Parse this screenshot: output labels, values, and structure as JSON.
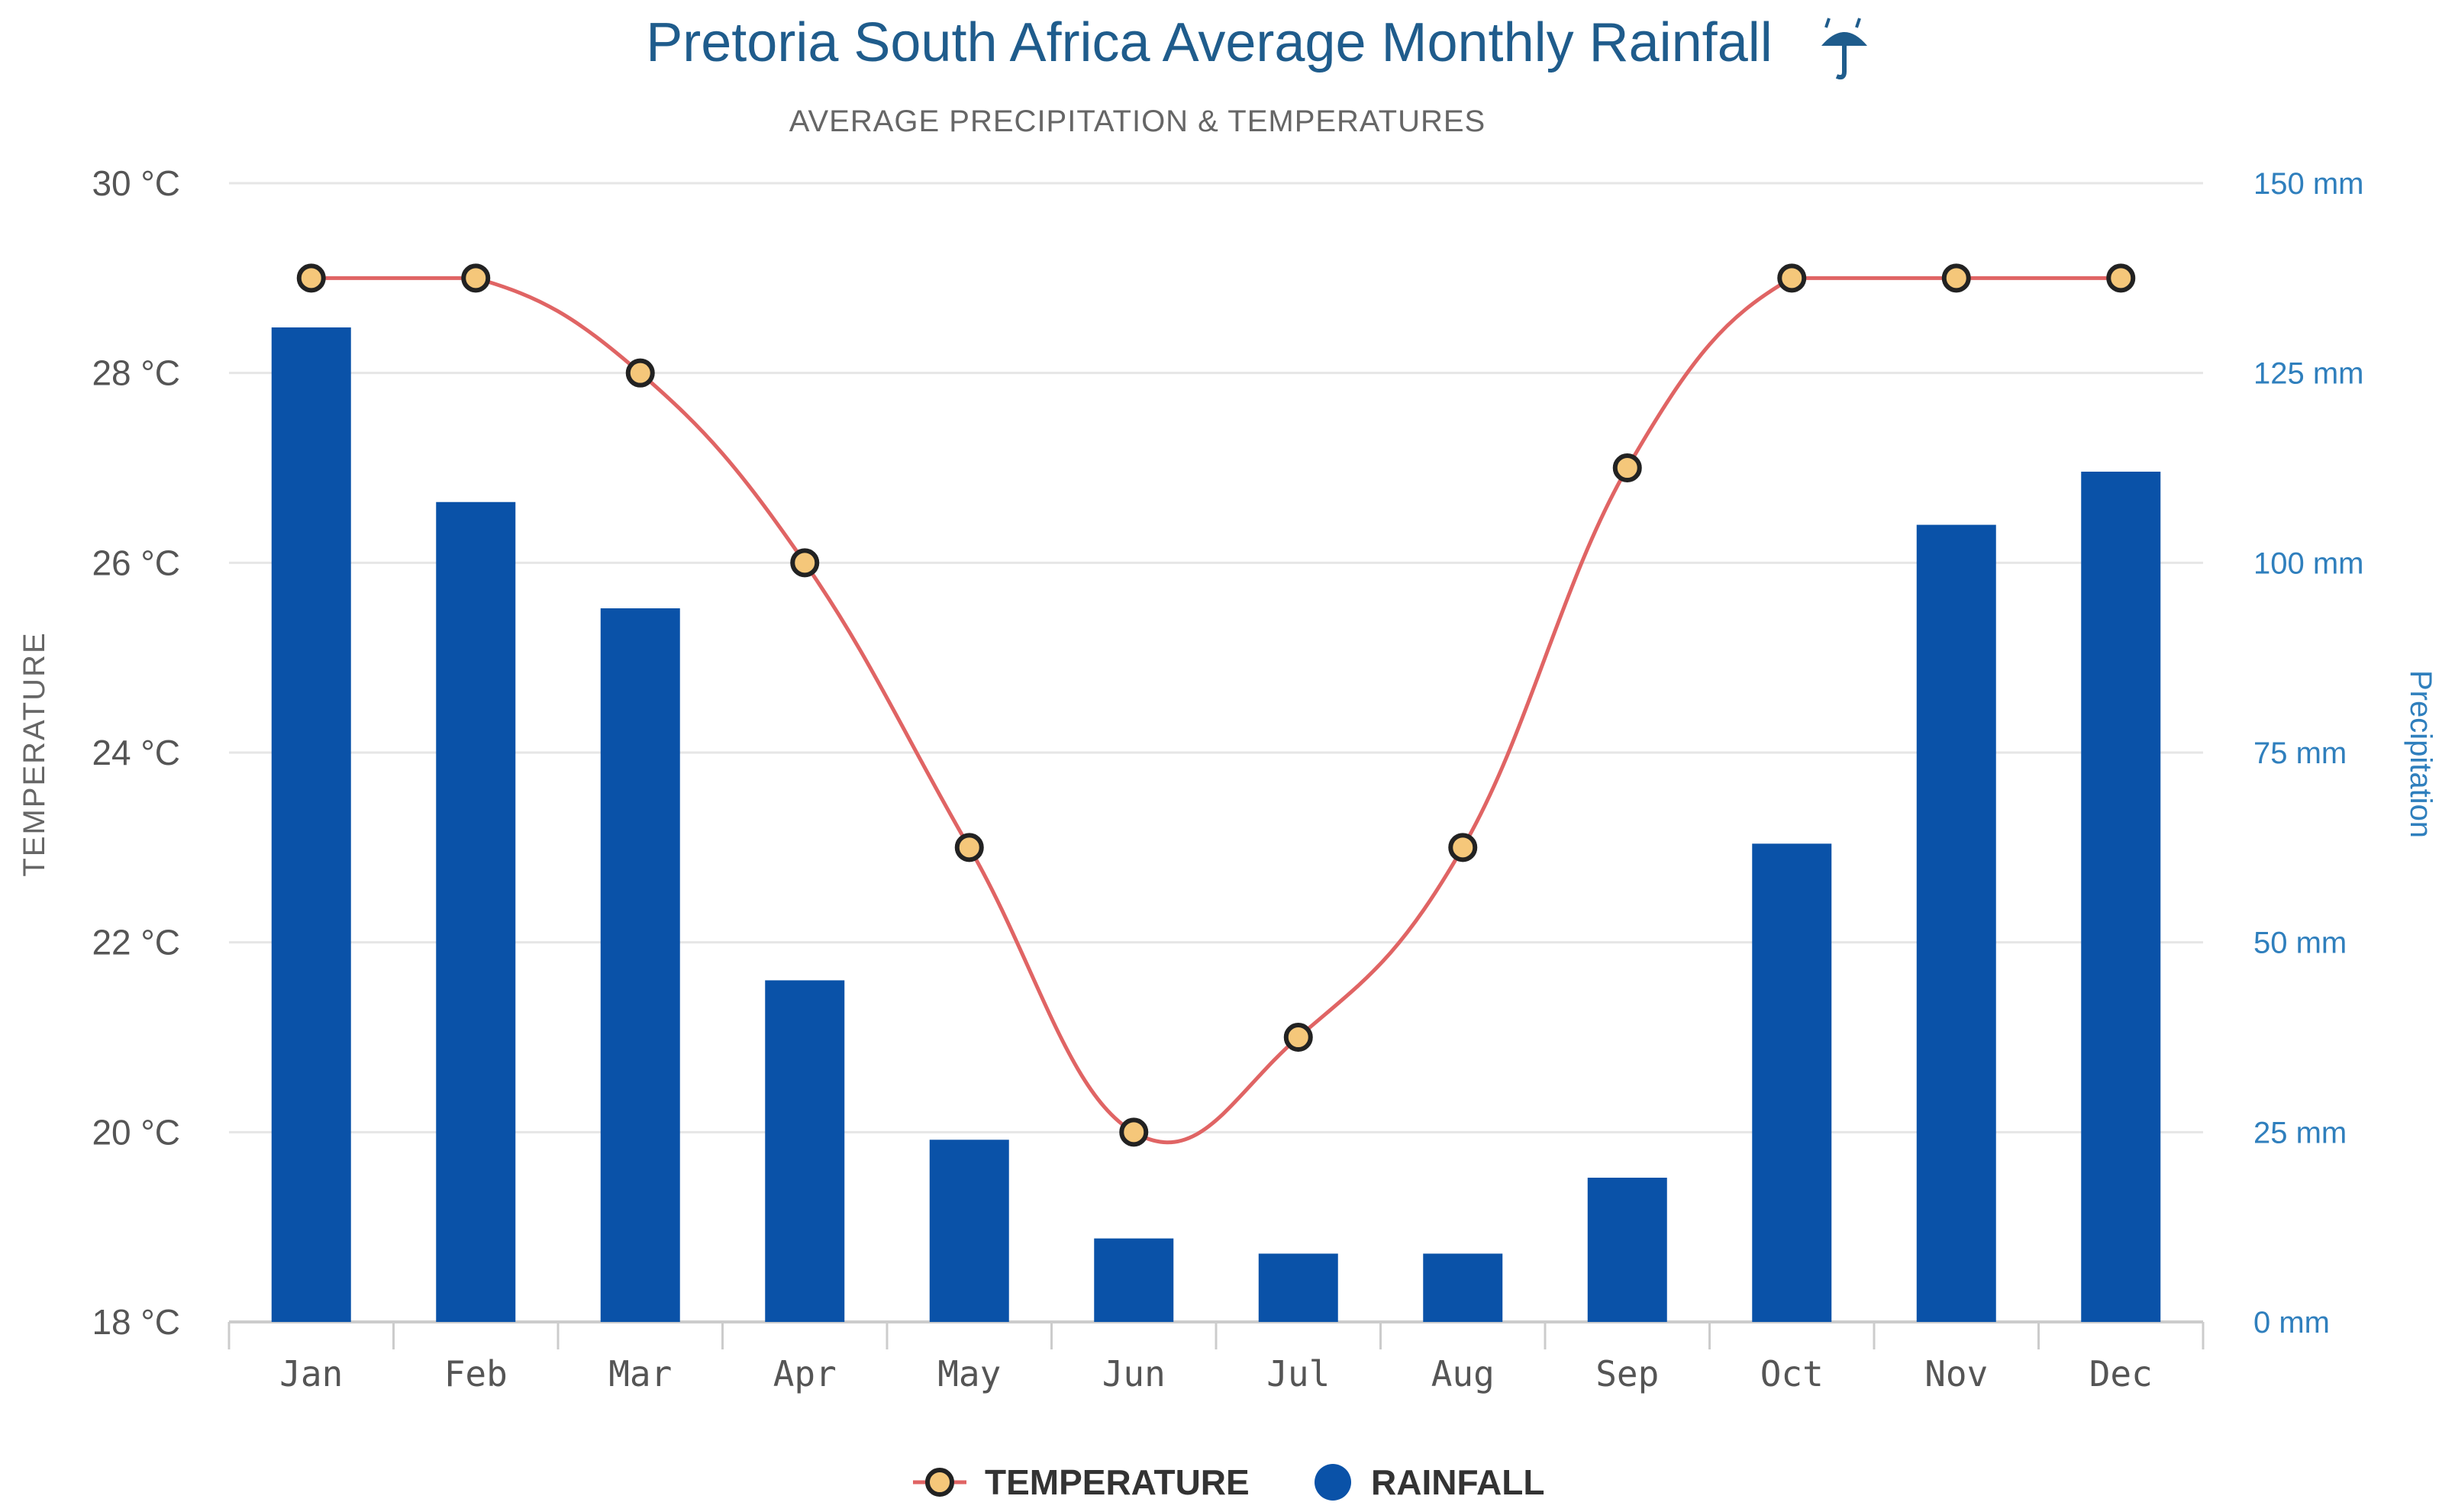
{
  "title": "Pretoria South Africa Average Monthly Rainfall",
  "title_icon": "umbrella-rain-icon",
  "subtitle": "AVERAGE PRECIPITATION & TEMPERATURES",
  "colors": {
    "bars": "#0a52a8",
    "line": "#e06464",
    "marker_fill": "#f5c77a",
    "marker_stroke": "#222222",
    "grid": "#e6e6e6",
    "title": "#1f5c8c",
    "right_axis": "#2f7fbd"
  },
  "chart_data": {
    "type": "bar+line",
    "categories": [
      "Jan",
      "Feb",
      "Mar",
      "Apr",
      "May",
      "Jun",
      "Jul",
      "Aug",
      "Sep",
      "Oct",
      "Nov",
      "Dec"
    ],
    "series": [
      {
        "name": "TEMPERATURE",
        "type": "line",
        "axis": "left",
        "values": [
          29,
          29,
          28,
          26,
          23,
          20,
          21,
          23,
          27,
          29,
          29,
          29
        ]
      },
      {
        "name": "RAINFALL",
        "type": "bar",
        "axis": "right",
        "values": [
          131,
          108,
          94,
          45,
          24,
          11,
          9,
          9,
          19,
          63,
          105,
          112
        ]
      }
    ],
    "ylabel_left": "TEMPERATURE",
    "ylabel_right": "Precipitation",
    "ylim_left": [
      18,
      30
    ],
    "ylim_right": [
      0,
      150
    ],
    "yticks_left": [
      {
        "value": 30,
        "label": "30 °C"
      },
      {
        "value": 28,
        "label": "28 °C"
      },
      {
        "value": 26,
        "label": "26 °C"
      },
      {
        "value": 24,
        "label": "24 °C"
      },
      {
        "value": 22,
        "label": "22 °C"
      },
      {
        "value": 20,
        "label": "20 °C"
      },
      {
        "value": 18,
        "label": "18 °C"
      }
    ],
    "yticks_right": [
      {
        "value": 150,
        "label": "150 mm"
      },
      {
        "value": 125,
        "label": "125 mm"
      },
      {
        "value": 100,
        "label": "100 mm"
      },
      {
        "value": 75,
        "label": "75 mm"
      },
      {
        "value": 50,
        "label": "50 mm"
      },
      {
        "value": 25,
        "label": "25 mm"
      },
      {
        "value": 0,
        "label": "0 mm"
      }
    ],
    "grid": true,
    "legend_position": "bottom-center",
    "legend": [
      {
        "label": "TEMPERATURE",
        "marker": "line-circle"
      },
      {
        "label": "RAINFALL",
        "marker": "circle"
      }
    ]
  }
}
